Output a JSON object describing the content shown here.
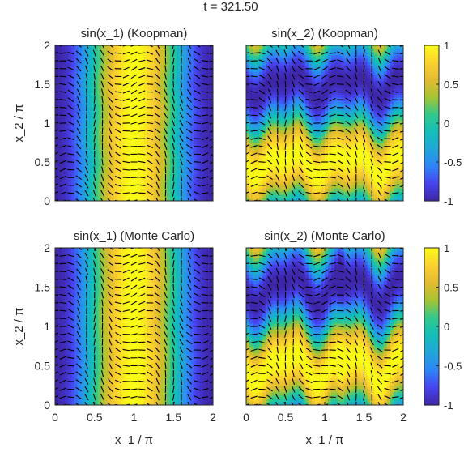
{
  "figure_title": "t = 321.50",
  "colormap": [
    "#3e26a8",
    "#4743f0",
    "#2e85f9",
    "#1fa6d9",
    "#12bfb9",
    "#31c98b",
    "#a6c431",
    "#e3bb2f",
    "#fcd12d",
    "#f9fb15"
  ],
  "chart_data": [
    {
      "type": "heatmap",
      "title": "sin(x_1) (Koopman)",
      "field": "sin(x1)",
      "method": "Koopman",
      "xlabel": "",
      "ylabel": "x_2 / π",
      "xlim": [
        0,
        2
      ],
      "ylim": [
        0,
        2
      ],
      "xticks": [],
      "yticks": [
        0,
        0.5,
        1,
        1.5,
        2
      ],
      "colorbar": false,
      "quiver": true,
      "grid": false
    },
    {
      "type": "heatmap",
      "title": "sin(x_2) (Koopman)",
      "field": "sin(x2)",
      "method": "Koopman",
      "xlabel": "",
      "ylabel": "",
      "xlim": [
        0,
        2
      ],
      "ylim": [
        0,
        2
      ],
      "xticks": [],
      "yticks": [],
      "colorbar": true,
      "clim": [
        -1,
        1
      ],
      "colorbar_ticks": [
        1,
        0.5,
        0,
        -0.5,
        -1
      ],
      "quiver": true,
      "grid": false
    },
    {
      "type": "heatmap",
      "title": "sin(x_1) (Monte Carlo)",
      "field": "sin(x1)",
      "method": "Monte Carlo",
      "xlabel": "x_1 / π",
      "ylabel": "x_2 / π",
      "xlim": [
        0,
        2
      ],
      "ylim": [
        0,
        2
      ],
      "xticks": [
        0,
        0.5,
        1,
        1.5,
        2
      ],
      "yticks": [
        0,
        0.5,
        1,
        1.5,
        2
      ],
      "colorbar": false,
      "quiver": true,
      "grid": false
    },
    {
      "type": "heatmap",
      "title": "sin(x_2) (Monte Carlo)",
      "field": "sin(x2)",
      "method": "Monte Carlo",
      "xlabel": "x_1 / π",
      "ylabel": "",
      "xlim": [
        0,
        2
      ],
      "ylim": [
        0,
        2
      ],
      "xticks": [
        0,
        0.5,
        1,
        1.5,
        2
      ],
      "yticks": [],
      "colorbar": true,
      "clim": [
        -1,
        1
      ],
      "colorbar_ticks": [
        1,
        0.5,
        0,
        -0.5,
        -1
      ],
      "quiver": true,
      "grid": false
    }
  ]
}
